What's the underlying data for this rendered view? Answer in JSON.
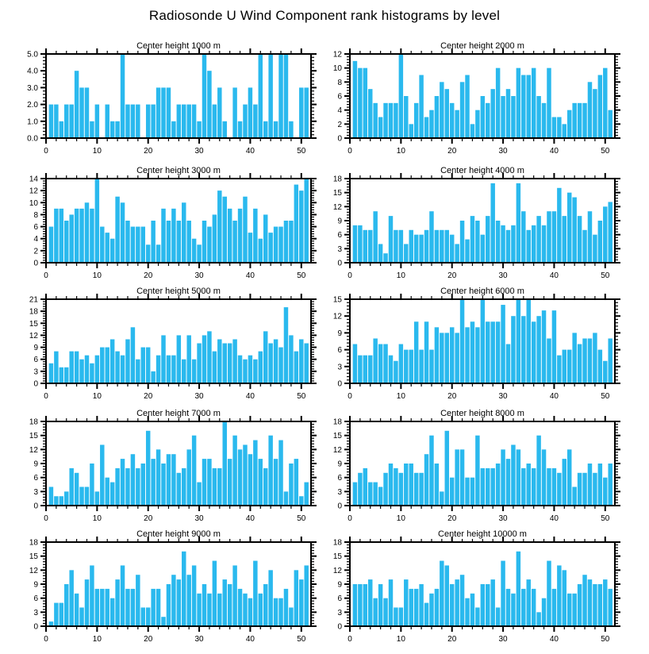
{
  "page_title": "Radiosonde U Wind Component rank histograms by level",
  "colors": {
    "bar": "#2ab9ee",
    "axis": "#000000",
    "background": "#ffffff",
    "text": "#000000"
  },
  "chart_data": [
    {
      "type": "bar",
      "title": "Center height 1000 m",
      "xlabel": "",
      "ylabel": "",
      "x_start": 1,
      "bin_width": 0.85,
      "xlim": [
        0,
        51.9
      ],
      "ylim": [
        0,
        5
      ],
      "xticks": [
        0,
        10,
        20,
        30,
        40,
        50
      ],
      "ytick_values": [
        0,
        1,
        2,
        3,
        4,
        5
      ],
      "ytick_labels": [
        "0.0",
        "1.0",
        "2.0",
        "3.0",
        "4.0",
        "5.0"
      ],
      "values": [
        2,
        2,
        1,
        2,
        2,
        4,
        3,
        3,
        1,
        2,
        0,
        2,
        1,
        1,
        5,
        2,
        2,
        2,
        0,
        2,
        2,
        3,
        3,
        3,
        1,
        2,
        2,
        2,
        2,
        1,
        5,
        4,
        2,
        3,
        1,
        0,
        3,
        1,
        2,
        3,
        2,
        5,
        1,
        5,
        1,
        5,
        5,
        1,
        0,
        3,
        3
      ]
    },
    {
      "type": "bar",
      "title": "Center height 2000 m",
      "xlabel": "",
      "ylabel": "",
      "x_start": 1,
      "bin_width": 0.85,
      "xlim": [
        0,
        51.9
      ],
      "ylim": [
        0,
        12
      ],
      "xticks": [
        0,
        10,
        20,
        30,
        40,
        50
      ],
      "ytick_values": [
        0,
        2,
        4,
        6,
        8,
        10,
        12
      ],
      "ytick_labels": [
        "0",
        "2",
        "4",
        "6",
        "8",
        "10",
        "12"
      ],
      "values": [
        11,
        10,
        10,
        7,
        5,
        3,
        5,
        5,
        5,
        12,
        6,
        2,
        5,
        9,
        3,
        4,
        6,
        8,
        7,
        5,
        4,
        8,
        9,
        2,
        4,
        6,
        5,
        7,
        10,
        6,
        7,
        6,
        10,
        9,
        9,
        10,
        6,
        5,
        10,
        3,
        3,
        2,
        4,
        5,
        5,
        5,
        8,
        7,
        9,
        10,
        4
      ]
    },
    {
      "type": "bar",
      "title": "Center height 3000 m",
      "xlabel": "",
      "ylabel": "",
      "x_start": 1,
      "bin_width": 0.85,
      "xlim": [
        0,
        51.9
      ],
      "ylim": [
        0,
        14
      ],
      "xticks": [
        0,
        10,
        20,
        30,
        40,
        50
      ],
      "ytick_values": [
        0,
        2,
        4,
        6,
        8,
        10,
        12,
        14
      ],
      "ytick_labels": [
        "0",
        "2",
        "4",
        "6",
        "8",
        "10",
        "12",
        "14"
      ],
      "values": [
        6,
        9,
        9,
        7,
        8,
        9,
        9,
        10,
        9,
        14,
        6,
        5,
        4,
        11,
        10,
        7,
        6,
        6,
        6,
        3,
        7,
        3,
        9,
        7,
        9,
        7,
        10,
        7,
        4,
        3,
        7,
        6,
        8,
        12,
        11,
        9,
        7,
        9,
        11,
        5,
        9,
        4,
        8,
        5,
        6,
        6,
        7,
        7,
        13,
        12,
        14
      ]
    },
    {
      "type": "bar",
      "title": "Center height 4000 m",
      "xlabel": "",
      "ylabel": "",
      "x_start": 1,
      "bin_width": 0.85,
      "xlim": [
        0,
        51.9
      ],
      "ylim": [
        0,
        18
      ],
      "xticks": [
        0,
        10,
        20,
        30,
        40,
        50
      ],
      "ytick_values": [
        0,
        3,
        6,
        9,
        12,
        15,
        18
      ],
      "ytick_labels": [
        "0",
        "3",
        "6",
        "9",
        "12",
        "15",
        "18"
      ],
      "values": [
        8,
        8,
        7,
        7,
        11,
        4,
        2,
        10,
        7,
        7,
        4,
        7,
        6,
        6,
        7,
        11,
        7,
        7,
        7,
        6,
        4,
        9,
        5,
        10,
        9,
        6,
        10,
        17,
        9,
        8,
        7,
        8,
        17,
        11,
        7,
        8,
        10,
        8,
        11,
        11,
        16,
        10,
        15,
        14,
        10,
        7,
        11,
        6,
        9,
        12,
        13
      ]
    },
    {
      "type": "bar",
      "title": "Center height 5000 m",
      "xlabel": "",
      "ylabel": "",
      "x_start": 1,
      "bin_width": 0.85,
      "xlim": [
        0,
        51.9
      ],
      "ylim": [
        0,
        21
      ],
      "xticks": [
        0,
        10,
        20,
        30,
        40,
        50
      ],
      "ytick_values": [
        0,
        3,
        6,
        9,
        12,
        15,
        18,
        21
      ],
      "ytick_labels": [
        "0",
        "3",
        "6",
        "9",
        "12",
        "15",
        "18",
        "21"
      ],
      "values": [
        5,
        8,
        4,
        4,
        8,
        8,
        6,
        7,
        5,
        7,
        9,
        9,
        11,
        8,
        7,
        11,
        14,
        6,
        9,
        9,
        3,
        7,
        12,
        7,
        7,
        12,
        6,
        12,
        6,
        10,
        12,
        13,
        8,
        11,
        10,
        10,
        11,
        7,
        6,
        7,
        6,
        8,
        13,
        10,
        11,
        9,
        19,
        12,
        8,
        11,
        10
      ]
    },
    {
      "type": "bar",
      "title": "Center height 6000 m",
      "xlabel": "",
      "ylabel": "",
      "x_start": 1,
      "bin_width": 0.85,
      "xlim": [
        0,
        51.9
      ],
      "ylim": [
        0,
        15
      ],
      "xticks": [
        0,
        10,
        20,
        30,
        40,
        50
      ],
      "ytick_values": [
        0,
        3,
        6,
        9,
        12,
        15
      ],
      "ytick_labels": [
        "0",
        "3",
        "6",
        "9",
        "12",
        "15"
      ],
      "values": [
        7,
        5,
        5,
        5,
        8,
        7,
        7,
        5,
        4,
        7,
        6,
        6,
        11,
        6,
        11,
        6,
        10,
        9,
        9,
        10,
        9,
        15,
        10,
        11,
        10,
        15,
        11,
        11,
        11,
        14,
        7,
        12,
        15,
        12,
        15,
        11,
        12,
        13,
        8,
        13,
        5,
        6,
        6,
        9,
        7,
        8,
        8,
        9,
        6,
        4,
        8
      ]
    },
    {
      "type": "bar",
      "title": "Center height 7000 m",
      "xlabel": "",
      "ylabel": "",
      "x_start": 1,
      "bin_width": 0.85,
      "xlim": [
        0,
        51.9
      ],
      "ylim": [
        0,
        18
      ],
      "xticks": [
        0,
        10,
        20,
        30,
        40,
        50
      ],
      "ytick_values": [
        0,
        3,
        6,
        9,
        12,
        15,
        18
      ],
      "ytick_labels": [
        "0",
        "3",
        "6",
        "9",
        "12",
        "15",
        "18"
      ],
      "values": [
        4,
        2,
        2,
        3,
        8,
        7,
        4,
        4,
        9,
        3,
        13,
        6,
        5,
        8,
        10,
        8,
        11,
        8,
        9,
        16,
        10,
        12,
        9,
        11,
        11,
        7,
        8,
        12,
        15,
        5,
        10,
        10,
        8,
        8,
        18,
        10,
        15,
        12,
        13,
        11,
        14,
        10,
        8,
        15,
        10,
        14,
        3,
        9,
        10,
        2,
        5
      ]
    },
    {
      "type": "bar",
      "title": "Center height 8000 m",
      "xlabel": "",
      "ylabel": "",
      "x_start": 1,
      "bin_width": 0.85,
      "xlim": [
        0,
        51.9
      ],
      "ylim": [
        0,
        18
      ],
      "xticks": [
        0,
        10,
        20,
        30,
        40,
        50
      ],
      "ytick_values": [
        0,
        3,
        6,
        9,
        12,
        15,
        18
      ],
      "ytick_labels": [
        "0",
        "3",
        "6",
        "9",
        "12",
        "15",
        "18"
      ],
      "values": [
        5,
        7,
        8,
        5,
        5,
        4,
        7,
        9,
        8,
        7,
        9,
        9,
        7,
        7,
        11,
        15,
        9,
        3,
        16,
        6,
        12,
        12,
        6,
        6,
        15,
        8,
        8,
        8,
        9,
        12,
        10,
        13,
        12,
        8,
        9,
        8,
        15,
        12,
        8,
        8,
        7,
        10,
        12,
        4,
        7,
        7,
        9,
        7,
        9,
        6,
        9
      ]
    },
    {
      "type": "bar",
      "title": "Center height 9000 m",
      "xlabel": "",
      "ylabel": "",
      "x_start": 1,
      "bin_width": 0.85,
      "xlim": [
        0,
        51.9
      ],
      "ylim": [
        0,
        18
      ],
      "xticks": [
        0,
        10,
        20,
        30,
        40,
        50
      ],
      "ytick_values": [
        0,
        3,
        6,
        9,
        12,
        15,
        18
      ],
      "ytick_labels": [
        "0",
        "3",
        "6",
        "9",
        "12",
        "15",
        "18"
      ],
      "values": [
        1,
        5,
        5,
        9,
        12,
        7,
        4,
        10,
        13,
        8,
        8,
        8,
        6,
        10,
        13,
        8,
        8,
        11,
        4,
        4,
        8,
        8,
        2,
        9,
        11,
        10,
        16,
        11,
        13,
        7,
        9,
        7,
        14,
        7,
        10,
        9,
        13,
        8,
        7,
        6,
        14,
        7,
        9,
        12,
        6,
        6,
        8,
        4,
        12,
        10,
        13
      ]
    },
    {
      "type": "bar",
      "title": "Center height 10000 m",
      "xlabel": "",
      "ylabel": "",
      "x_start": 1,
      "bin_width": 0.85,
      "xlim": [
        0,
        51.9
      ],
      "ylim": [
        0,
        18
      ],
      "xticks": [
        0,
        10,
        20,
        30,
        40,
        50
      ],
      "ytick_values": [
        0,
        3,
        6,
        9,
        12,
        15,
        18
      ],
      "ytick_labels": [
        "0",
        "3",
        "6",
        "9",
        "12",
        "15",
        "18"
      ],
      "values": [
        9,
        9,
        9,
        10,
        6,
        9,
        6,
        10,
        4,
        4,
        10,
        8,
        8,
        9,
        5,
        7,
        8,
        14,
        13,
        9,
        10,
        11,
        6,
        7,
        4,
        9,
        9,
        10,
        4,
        14,
        8,
        7,
        16,
        8,
        10,
        8,
        3,
        6,
        14,
        8,
        13,
        12,
        7,
        7,
        9,
        11,
        10,
        9,
        9,
        10,
        8
      ]
    }
  ]
}
